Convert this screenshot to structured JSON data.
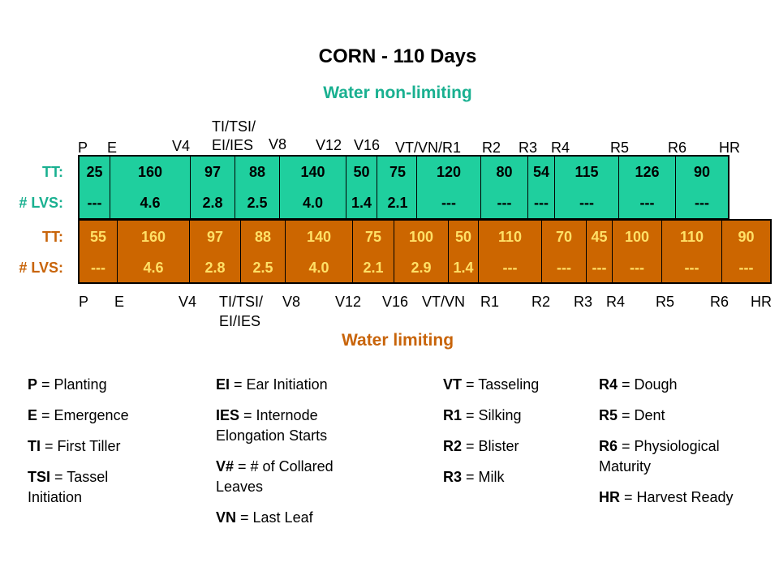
{
  "title": "CORN - 110 Days",
  "subtitle_top": "Water non-limiting",
  "subtitle_bottom": "Water limiting",
  "row_labels": {
    "tt": "TT:",
    "lvs": "# LVS:"
  },
  "top_stages": [
    "P",
    "E",
    "V4",
    "TI/TSI/",
    "EI/IES",
    "V8",
    "V12",
    "V16",
    "VT/VN/R1",
    "R2",
    "R3",
    "R4",
    "R5",
    "R6",
    "HR"
  ],
  "top_tt": [
    "25",
    "160",
    "97",
    "88",
    "140",
    "50",
    "75",
    "120",
    "80",
    "54",
    "115",
    "126",
    "90"
  ],
  "top_lvs": [
    "---",
    "4.6",
    "2.8",
    "2.5",
    "4.0",
    "1.4",
    "2.1",
    "---",
    "---",
    "---",
    "---",
    "---",
    "---"
  ],
  "bottom_tt": [
    "55",
    "160",
    "97",
    "88",
    "140",
    "75",
    "100",
    "50",
    "110",
    "70",
    "45",
    "100",
    "110",
    "90"
  ],
  "bottom_lvs": [
    "---",
    "4.6",
    "2.8",
    "2.5",
    "4.0",
    "2.1",
    "2.9",
    "1.4",
    "---",
    "---",
    "---",
    "---",
    "---",
    "---"
  ],
  "bottom_stages": [
    "P",
    "E",
    "V4",
    "TI/TSI/",
    "EI/IES",
    "V8",
    "V12",
    "V16",
    "VT/VN",
    "R1",
    "R2",
    "R3",
    "R4",
    "R5",
    "R6",
    "HR"
  ],
  "legend": [
    [
      {
        "code": "P",
        "text": " = Planting"
      },
      {
        "code": "E",
        "text": " = Emergence"
      },
      {
        "code": "TI",
        "text": " = First Tiller"
      },
      {
        "code": "TSI",
        "text": " = Tassel Initiation"
      }
    ],
    [
      {
        "code": "EI",
        "text": " = Ear Initiation"
      },
      {
        "code": "IES",
        "text": " = Internode Elongation Starts"
      },
      {
        "code": "V#",
        "text": " = # of Collared Leaves"
      },
      {
        "code": "VN",
        "text": " = Last Leaf"
      }
    ],
    [
      {
        "code": "VT",
        "text": " = Tasseling"
      },
      {
        "code": "R1",
        "text": " = Silking"
      },
      {
        "code": "R2",
        "text": " = Blister"
      },
      {
        "code": "R3",
        "text": " = Milk"
      }
    ],
    [
      {
        "code": "R4",
        "text": " = Dough"
      },
      {
        "code": "R5",
        "text": " = Dent"
      },
      {
        "code": "R6",
        "text": " = Physiological Maturity"
      },
      {
        "code": "HR",
        "text": " = Harvest Ready"
      }
    ]
  ],
  "colors": {
    "green_band": "#1fcf9e",
    "green_text": "#19b090",
    "orange_band": "#cc6600",
    "orange_text": "#c8640a",
    "orange_values": "#ffe066"
  }
}
